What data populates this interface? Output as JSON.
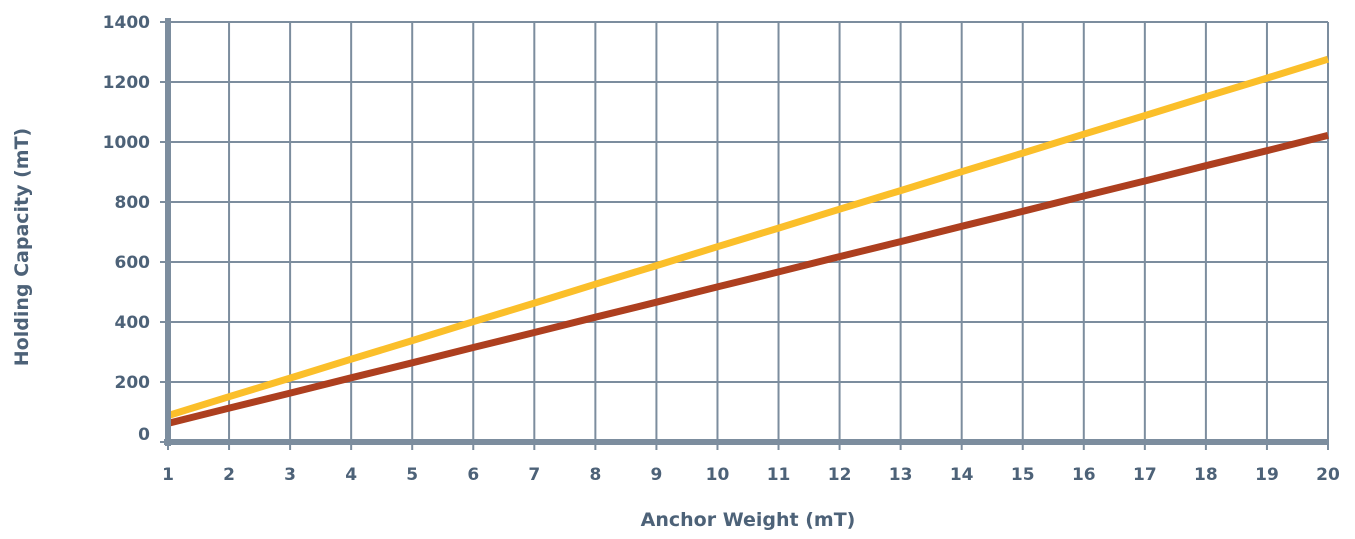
{
  "chart_data": {
    "type": "line",
    "title": "",
    "xlabel": "Anchor Weight (mT)",
    "ylabel": "Holding Capacity (mT)",
    "x": [
      1,
      2,
      3,
      4,
      5,
      6,
      7,
      8,
      9,
      10,
      11,
      12,
      13,
      14,
      15,
      16,
      17,
      18,
      19,
      20
    ],
    "xlim": [
      1,
      20
    ],
    "ylim": [
      0,
      1400
    ],
    "xticks": [
      "1",
      "2",
      "3",
      "4",
      "5",
      "6",
      "7",
      "8",
      "9",
      "10",
      "11",
      "12",
      "13",
      "14",
      "15",
      "16",
      "17",
      "18",
      "19",
      "20"
    ],
    "yticks": [
      "0",
      "200",
      "400",
      "600",
      "800",
      "1000",
      "1200",
      "1400"
    ],
    "grid": true,
    "legend": "none",
    "series": [
      {
        "color": "#fbbf2a",
        "values": [
          88,
          151,
          213,
          276,
          338,
          401,
          463,
          526,
          588,
          651,
          713,
          776,
          838,
          901,
          963,
          1026,
          1088,
          1151,
          1213,
          1276
        ]
      },
      {
        "color": "#ad3f1f",
        "values": [
          62,
          113,
          163,
          214,
          264,
          315,
          365,
          416,
          466,
          517,
          567,
          618,
          668,
          719,
          769,
          820,
          870,
          921,
          971,
          1022
        ]
      }
    ],
    "colors": {
      "grid": "#7c8d9e",
      "axis": "#7c8d9e",
      "text": "#4d6278"
    }
  }
}
